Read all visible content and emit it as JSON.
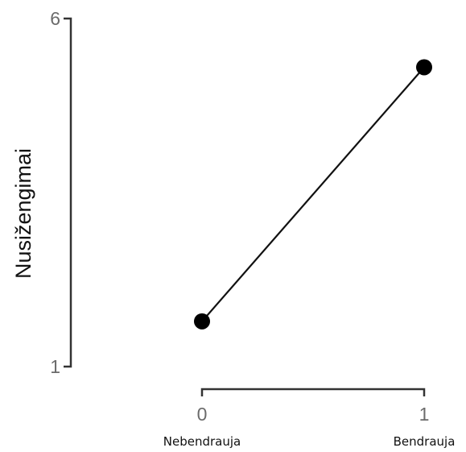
{
  "chart_data": {
    "type": "line",
    "ylabel": "Nusižengimai",
    "xlabel": "",
    "ylim": [
      1,
      6
    ],
    "xlim": [
      0,
      1
    ],
    "y_ticks": [
      "1",
      "6"
    ],
    "x_ticks": [
      "0",
      "1"
    ],
    "categories": [
      "Nebendrauja",
      "Bendrauja"
    ],
    "x": [
      0,
      1
    ],
    "series": [
      {
        "values": [
          1.65,
          5.3
        ]
      }
    ],
    "grid": false,
    "colors": {
      "line": "#111111",
      "points": "#000000",
      "axis": "#333333",
      "ticks": "#6b6b6b"
    }
  }
}
